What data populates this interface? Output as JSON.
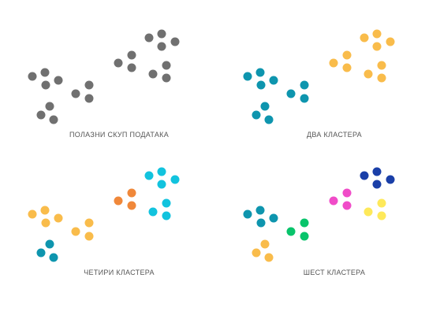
{
  "panels": [
    {
      "caption": "ПОЛАЗНИ СКУП ПОДАТАКА",
      "groups": [
        {
          "color": "#707070",
          "points": "A"
        },
        {
          "color": "#707070",
          "points": "B"
        },
        {
          "color": "#707070",
          "points": "C"
        },
        {
          "color": "#707070",
          "points": "D"
        },
        {
          "color": "#707070",
          "points": "E"
        },
        {
          "color": "#707070",
          "points": "F"
        }
      ]
    },
    {
      "caption": "ДВА КЛАСТЕРА",
      "groups": [
        {
          "color": "#0e95ae",
          "points": "A"
        },
        {
          "color": "#0e95ae",
          "points": "B"
        },
        {
          "color": "#0e95ae",
          "points": "C"
        },
        {
          "color": "#f9bc4b",
          "points": "D"
        },
        {
          "color": "#f9bc4b",
          "points": "E"
        },
        {
          "color": "#f9bc4b",
          "points": "F"
        }
      ]
    },
    {
      "caption": "ЧЕТИРИ КЛАСТЕРА",
      "groups": [
        {
          "color": "#f9bc4b",
          "points": "A"
        },
        {
          "color": "#f9bc4b",
          "points": "B"
        },
        {
          "color": "#0e95ae",
          "points": "C"
        },
        {
          "color": "#f0883a",
          "points": "D"
        },
        {
          "color": "#12c3de",
          "points": "E"
        },
        {
          "color": "#12c3de",
          "points": "F"
        }
      ]
    },
    {
      "caption": "ШЕСТ КЛАСТЕРА",
      "groups": [
        {
          "color": "#0e95ae",
          "points": "A"
        },
        {
          "color": "#08c46b",
          "points": "B"
        },
        {
          "color": "#f9bc4b",
          "points": "C"
        },
        {
          "color": "#f04cc8",
          "points": "D"
        },
        {
          "color": "#1a3fa8",
          "points": "E"
        },
        {
          "color": "#fee95a",
          "points": "F"
        }
      ]
    }
  ]
}
